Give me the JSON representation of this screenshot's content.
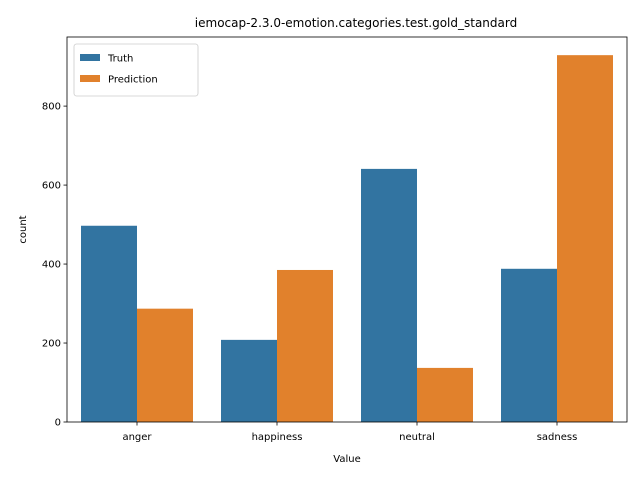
{
  "chart_data": {
    "type": "bar",
    "title": "iemocap-2.3.0-emotion.categories.test.gold_standard",
    "xlabel": "Value",
    "ylabel": "count",
    "categories": [
      "anger",
      "happiness",
      "neutral",
      "sadness"
    ],
    "series": [
      {
        "name": "Truth",
        "values": [
          497,
          208,
          641,
          388
        ],
        "color": "#3274a1"
      },
      {
        "name": "Prediction",
        "values": [
          287,
          385,
          137,
          929
        ],
        "color": "#e1812c"
      }
    ],
    "ylim": [
      0,
      975
    ],
    "yticks": [
      0,
      200,
      400,
      600,
      800
    ],
    "grid": false,
    "legend": {
      "position": "top-left"
    }
  }
}
